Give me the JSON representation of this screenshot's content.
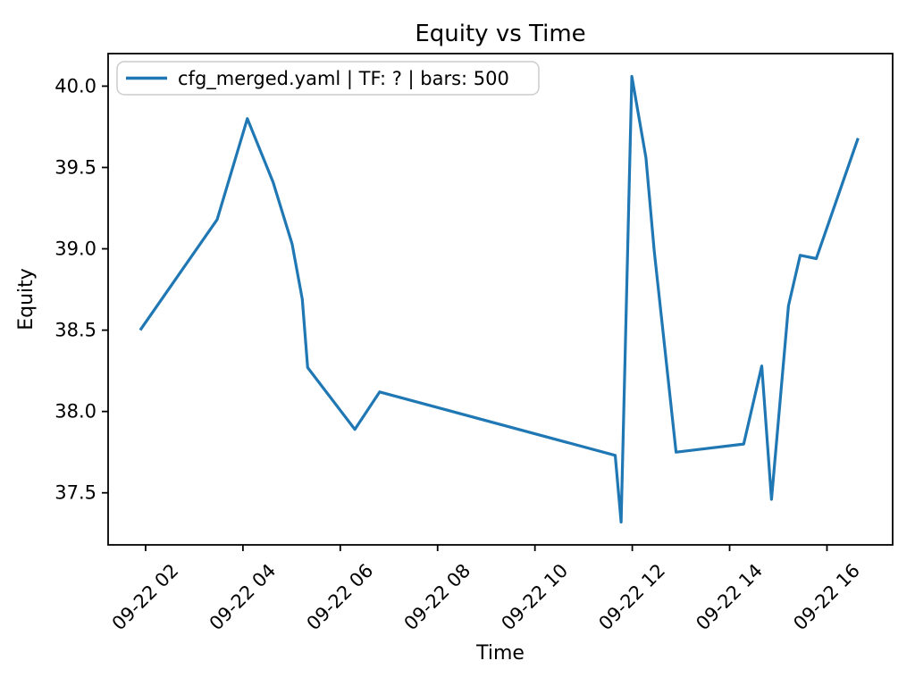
{
  "figure": {
    "background": "#ffffff",
    "text_color": "#000000",
    "spine_color": "#000000"
  },
  "chart_data": {
    "type": "line",
    "title": "Equity vs Time",
    "xlabel": "Time",
    "ylabel": "Equity",
    "grid": false,
    "legend": {
      "position": "upper left",
      "entries": [
        "cfg_merged.yaml | TF: ? | bars: 500"
      ]
    },
    "x_axis": {
      "tick_labels": [
        "09-22 02",
        "09-22 04",
        "09-22 06",
        "09-22 08",
        "09-22 10",
        "09-22 12",
        "09-22 14",
        "09-22 16"
      ],
      "tick_hours": [
        2,
        4,
        6,
        8,
        10,
        12,
        14,
        16
      ],
      "range_hours": [
        1.23,
        17.35
      ],
      "tick_rotation_deg": 45
    },
    "y_axis": {
      "tick_labels": [
        "37.5",
        "38.0",
        "38.5",
        "39.0",
        "39.5",
        "40.0"
      ],
      "ticks": [
        37.5,
        38.0,
        38.5,
        39.0,
        39.5,
        40.0
      ],
      "range": [
        37.18,
        40.2
      ]
    },
    "series": [
      {
        "name": "cfg_merged.yaml | TF: ? | bars: 500",
        "color": "#1f77b4",
        "points_hour_equity": [
          [
            1.89,
            38.5
          ],
          [
            3.47,
            39.18
          ],
          [
            4.09,
            39.8
          ],
          [
            4.62,
            39.41
          ],
          [
            5.01,
            39.03
          ],
          [
            5.22,
            38.69
          ],
          [
            5.33,
            38.27
          ],
          [
            6.3,
            37.89
          ],
          [
            6.81,
            38.12
          ],
          [
            11.65,
            37.73
          ],
          [
            11.77,
            37.32
          ],
          [
            11.99,
            40.06
          ],
          [
            12.28,
            39.56
          ],
          [
            12.45,
            38.99
          ],
          [
            12.65,
            38.44
          ],
          [
            12.9,
            37.75
          ],
          [
            14.29,
            37.8
          ],
          [
            14.66,
            38.28
          ],
          [
            14.86,
            37.46
          ],
          [
            15.21,
            38.65
          ],
          [
            15.45,
            38.96
          ],
          [
            15.78,
            38.94
          ],
          [
            16.64,
            39.68
          ]
        ]
      }
    ]
  }
}
